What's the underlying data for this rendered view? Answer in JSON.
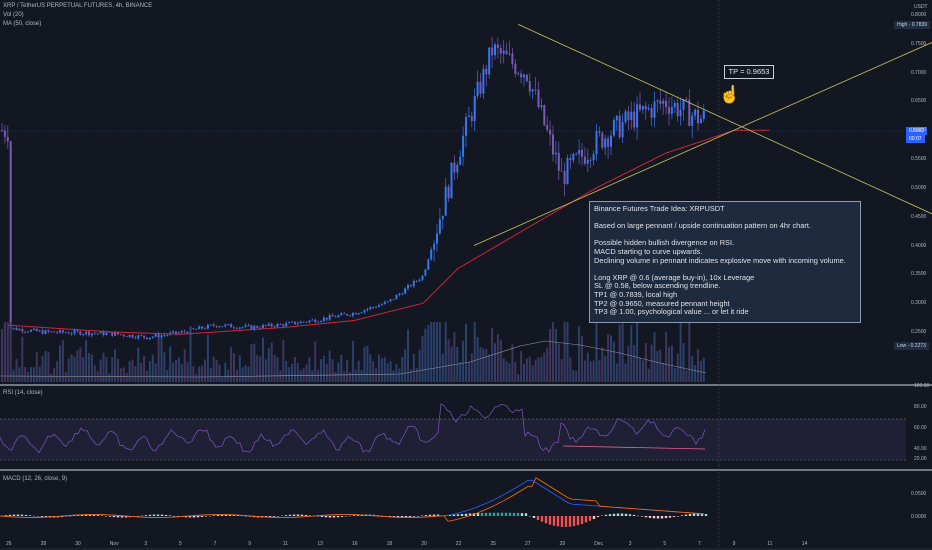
{
  "header": {
    "symbol_line": "XRP / TetherUS PERPETUAL FUTURES, 4h, BINANCE",
    "vol_line": "Vol (20)",
    "ma_line": "MA (50, close)"
  },
  "currency_label": "USDT",
  "price_axis": {
    "ticks": [
      "0.8000",
      "0.7500",
      "0.7000",
      "0.6500",
      "0.6000",
      "0.5500",
      "0.5000",
      "0.4500",
      "0.4000",
      "0.3500",
      "0.3000",
      "0.2500"
    ],
    "high_label": "High",
    "high_value": "0.7839",
    "low_label": "Low",
    "low_value": "0.2273",
    "current_tags": [
      "0.5992",
      "00:07"
    ]
  },
  "time_axis": [
    "26",
    "28",
    "30",
    "Nov",
    "3",
    "5",
    "7",
    "9",
    "11",
    "13",
    "16",
    "18",
    "20",
    "22",
    "25",
    "27",
    "29",
    "Dec",
    "3",
    "5",
    "7",
    "9",
    "11",
    "14"
  ],
  "rsi": {
    "label": "RSI (14, close)",
    "ticks": [
      "100.00",
      "80.00",
      "60.00",
      "40.00",
      "20.00"
    ]
  },
  "macd": {
    "label": "MACD (12, 26, close, 9)",
    "ticks": [
      "0.0500",
      "0.0000"
    ]
  },
  "annotations": {
    "tp_box": "TP = 0.9653",
    "idea_lines": [
      "Binance Futures Trade Idea:  XRPUSDT",
      "",
      "Based on large pennant / upside continuation pattern on 4hr chart.",
      "",
      "Possible hidden bullish divergence on RSI.",
      "MACD starting to curve upwards.",
      "Declining volume in pennant indicates explosive move with incoming volume.",
      "",
      "Long XRP @ 0.6 (average buy-in), 10x Leverage",
      "SL @ 0.58, below ascending trendline.",
      "TP1 @ 0.7839, local high",
      "TP2 @ 0.9650, measured pennant height",
      "TP3 @ 1.00, psychological value ... or let it ride"
    ]
  },
  "colors": {
    "background": "#131722",
    "up_candle": "#3179f5",
    "down_candle": "#7b5ab5",
    "ma_line": "#d0243a",
    "trendlines": "#c9c55a",
    "rsi_line": "#7e57c2",
    "macd_line": "#2962ff",
    "signal_line": "#ff6d00"
  },
  "chart_data": {
    "type": "candlestick",
    "symbol": "XRPUSDT",
    "interval": "4h",
    "price_range": [
      0.22,
      0.8
    ],
    "key_levels": {
      "high": 0.7839,
      "low": 0.2273,
      "current": 0.5992
    },
    "close_path": [
      {
        "x": "26",
        "y": 0.257
      },
      {
        "x": "28",
        "y": 0.25
      },
      {
        "x": "30",
        "y": 0.249
      },
      {
        "x": "Nov",
        "y": 0.247
      },
      {
        "x": "3",
        "y": 0.241
      },
      {
        "x": "5",
        "y": 0.249
      },
      {
        "x": "7",
        "y": 0.262
      },
      {
        "x": "9",
        "y": 0.258
      },
      {
        "x": "11",
        "y": 0.263
      },
      {
        "x": "13",
        "y": 0.272
      },
      {
        "x": "16",
        "y": 0.283
      },
      {
        "x": "18",
        "y": 0.302
      },
      {
        "x": "20",
        "y": 0.348
      },
      {
        "x": "22",
        "y": 0.56
      },
      {
        "x": "24",
        "y": 0.74
      },
      {
        "x": "25",
        "y": 0.7
      },
      {
        "x": "26",
        "y": 0.52
      },
      {
        "x": "27",
        "y": 0.58
      },
      {
        "x": "29",
        "y": 0.62
      },
      {
        "x": "Dec",
        "y": 0.65
      },
      {
        "x": "2",
        "y": 0.62
      },
      {
        "x": "3",
        "y": 0.64
      },
      {
        "x": "4",
        "y": 0.6
      }
    ],
    "ma50_path": [
      {
        "x": "26",
        "y": 0.262
      },
      {
        "x": "Nov",
        "y": 0.25
      },
      {
        "x": "5",
        "y": 0.246
      },
      {
        "x": "11",
        "y": 0.258
      },
      {
        "x": "16",
        "y": 0.27
      },
      {
        "x": "20",
        "y": 0.3
      },
      {
        "x": "22",
        "y": 0.36
      },
      {
        "x": "25",
        "y": 0.43
      },
      {
        "x": "27",
        "y": 0.5
      },
      {
        "x": "29",
        "y": 0.56
      },
      {
        "x": "Dec",
        "y": 0.6
      },
      {
        "x": "4",
        "y": 0.6
      }
    ],
    "trendlines": [
      {
        "name": "upper",
        "from": {
          "x": "24",
          "y": 0.7839
        },
        "to": {
          "x": "14",
          "y": 0.455
        }
      },
      {
        "name": "lower",
        "from": {
          "x": "22",
          "y": 0.4
        },
        "to": {
          "x": "14",
          "y": 0.7525
        }
      }
    ],
    "rsi_range": [
      0,
      100
    ],
    "macd_range": [
      -0.02,
      0.06
    ]
  }
}
